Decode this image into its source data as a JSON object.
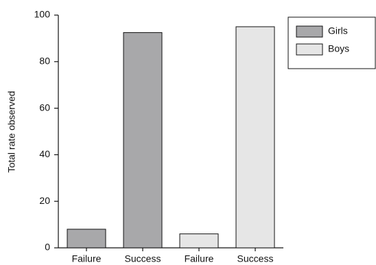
{
  "chart_data": {
    "type": "bar",
    "y_label": "Total rate observed",
    "categories": [
      "Failure",
      "Success",
      "Failure",
      "Success"
    ],
    "series": [
      {
        "name": "Girls",
        "color": "#a8a8aa",
        "values": [
          8,
          92.5,
          null,
          null
        ]
      },
      {
        "name": "Boys",
        "color": "#e6e6e6",
        "values": [
          null,
          null,
          6,
          95
        ]
      }
    ],
    "ylim": [
      0,
      100
    ],
    "yticks": [
      0,
      20,
      40,
      60,
      80,
      100
    ],
    "grid": false,
    "legend": "top-right"
  }
}
